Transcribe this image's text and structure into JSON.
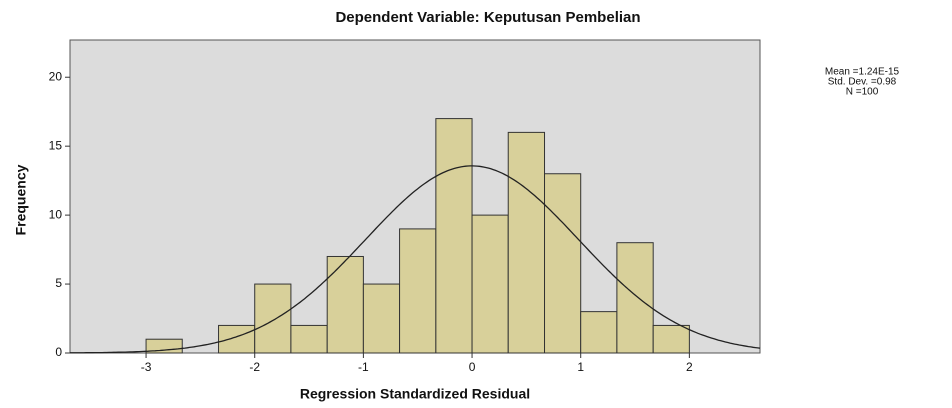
{
  "chart_data": {
    "type": "histogram",
    "title": "Dependent Variable: Keputusan Pembelian",
    "xlabel": "Regression Standardized Residual",
    "ylabel": "Frequency",
    "bins": [
      -3,
      -2.667,
      -2.333,
      -2,
      -1.667,
      -1.333,
      -1,
      -0.667,
      -0.333,
      0,
      0.333,
      0.667,
      1,
      1.333,
      1.667,
      2
    ],
    "values": [
      1,
      0,
      2,
      5,
      2,
      7,
      5,
      9,
      17,
      10,
      16,
      13,
      3,
      8,
      2
    ],
    "color": "#d8d09a",
    "xlim": [
      -3.7,
      2.65
    ],
    "ylim": [
      0,
      22.7
    ],
    "xticks": [
      -3,
      -2,
      -1,
      0,
      1,
      2
    ],
    "yticks": [
      0,
      5,
      10,
      15,
      20
    ],
    "stats": {
      "mean": {
        "value": 1.24e-15,
        "label": "Mean =1.24E-15"
      },
      "sd": {
        "value": 0.98,
        "label": "Std. Dev. =0.98"
      },
      "n": {
        "value": 100,
        "label": "N =100"
      }
    }
  }
}
